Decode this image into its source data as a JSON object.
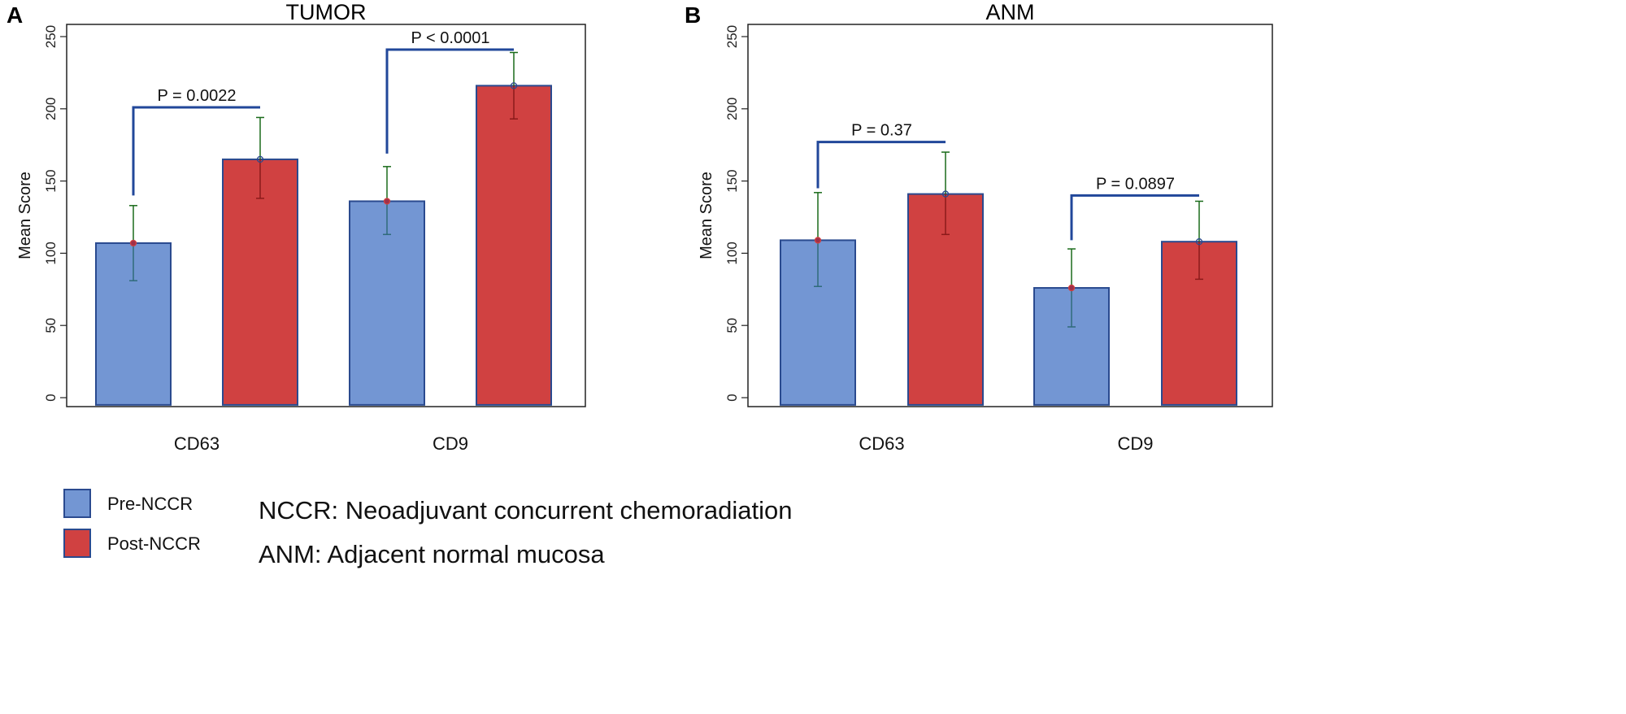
{
  "colors": {
    "pre": "#7396d3",
    "post": "#d04141",
    "outline": "#2a4a8f",
    "bracket": "#21479a",
    "err_upper": "#1a6b1a",
    "err_lower_pre": "#2f6b7a",
    "err_lower_post": "#8b1a1a"
  },
  "legend": [
    {
      "label": "Pre-NCCR",
      "color": "#7396d3"
    },
    {
      "label": "Post-NCCR",
      "color": "#d04141"
    }
  ],
  "notes": [
    "NCCR: Neoadjuvant concurrent chemoradiation",
    "ANM: Adjacent normal mucosa"
  ],
  "chart_data": [
    {
      "type": "bar",
      "panel": "A",
      "title": "TUMOR",
      "ylabel": "Mean Score",
      "ylim": [
        0,
        250
      ],
      "yticks": [
        "0",
        "50",
        "100",
        "150",
        "200",
        "250"
      ],
      "categories": [
        "CD63",
        "CD9"
      ],
      "series": [
        {
          "name": "Pre-NCCR",
          "values": [
            107,
            136
          ],
          "err_low": [
            81,
            113
          ],
          "err_high": [
            133,
            160
          ]
        },
        {
          "name": "Post-NCCR",
          "values": [
            165,
            216
          ],
          "err_low": [
            138,
            193
          ],
          "err_high": [
            194,
            239
          ]
        }
      ],
      "annotations": [
        {
          "text": "P = 0.0022",
          "category": "CD63",
          "level": 201,
          "left_end": 140
        },
        {
          "text": "P < 0.0001",
          "category": "CD9",
          "level": 241,
          "left_end": 169
        }
      ]
    },
    {
      "type": "bar",
      "panel": "B",
      "title": "ANM",
      "ylabel": "Mean Score",
      "ylim": [
        0,
        250
      ],
      "yticks": [
        "0",
        "50",
        "100",
        "150",
        "200",
        "250"
      ],
      "categories": [
        "CD63",
        "CD9"
      ],
      "series": [
        {
          "name": "Pre-NCCR",
          "values": [
            109,
            76
          ],
          "err_low": [
            77,
            49
          ],
          "err_high": [
            142,
            103
          ]
        },
        {
          "name": "Post-NCCR",
          "values": [
            141,
            108
          ],
          "err_low": [
            113,
            82
          ],
          "err_high": [
            170,
            136
          ]
        }
      ],
      "annotations": [
        {
          "text": "P = 0.37",
          "category": "CD63",
          "level": 177,
          "left_end": 145
        },
        {
          "text": "P = 0.0897",
          "category": "CD9",
          "level": 140,
          "left_end": 109
        }
      ]
    }
  ]
}
